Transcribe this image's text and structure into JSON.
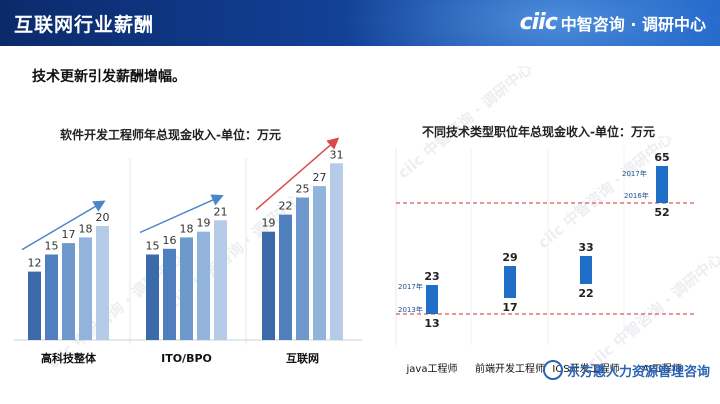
{
  "header": {
    "title": "互联网行业薪酬",
    "logo_mark": "ciic",
    "logo_text": "中智咨询 · 调研中心"
  },
  "subtitle": "技术更新引发薪酬增幅。",
  "watermark_text": "ciic 中智咨询 · 调研中心",
  "footer": {
    "text": "东方惠人力资源管理咨询"
  },
  "colors": {
    "header_dark": "#0b2a6b",
    "header_light": "#1e63c8",
    "bar_shades": [
      "#3a6ba8",
      "#4f80bd",
      "#6f99cd",
      "#92b3db",
      "#b5cbe8"
    ],
    "trend_blue": "#4a86c8",
    "trend_red": "#d94b4b",
    "range_bar": "#1f6fc9",
    "ref_line": "#cc3333"
  },
  "chart_data": [
    {
      "type": "bar",
      "title": "软件开发工程师年总现金收入-单位：万元",
      "groups": [
        {
          "label": "高科技整体",
          "values": [
            12,
            15,
            17,
            18,
            20
          ]
        },
        {
          "label": "ITO/BPO",
          "values": [
            15,
            16,
            18,
            19,
            21
          ]
        },
        {
          "label": "互联网",
          "values": [
            19,
            22,
            25,
            27,
            31
          ]
        }
      ]
    },
    {
      "type": "range",
      "title": "不同技术类型职位年总现金收入-单位：万元",
      "categories": [
        {
          "label": "java工程师",
          "low": 13,
          "high": 23
        },
        {
          "label": "前端开发工程师",
          "low": 17,
          "high": 29
        },
        {
          "label": "IOS开发工程师",
          "low": 22,
          "high": 33
        },
        {
          "label": "AI工程师",
          "low": 52,
          "high": 65
        }
      ],
      "ref_labels": {
        "year_2017": "2017年",
        "year_2013": "2013年",
        "year_2016": "2016年"
      }
    }
  ]
}
